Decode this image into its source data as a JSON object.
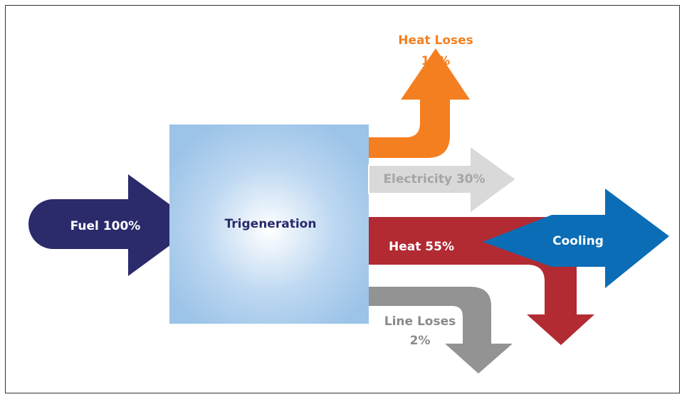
{
  "nodes": [
    {
      "label": "Fuel 100%"
    },
    {
      "label": "Trigeneration"
    },
    {
      "label": "Heat Loses",
      "sublabel": "13%"
    },
    {
      "label": "Electricity 30%"
    },
    {
      "label": "Heat 55%"
    },
    {
      "label": "Cooling"
    },
    {
      "label": "Line Loses",
      "sublabel": "2%"
    }
  ]
}
